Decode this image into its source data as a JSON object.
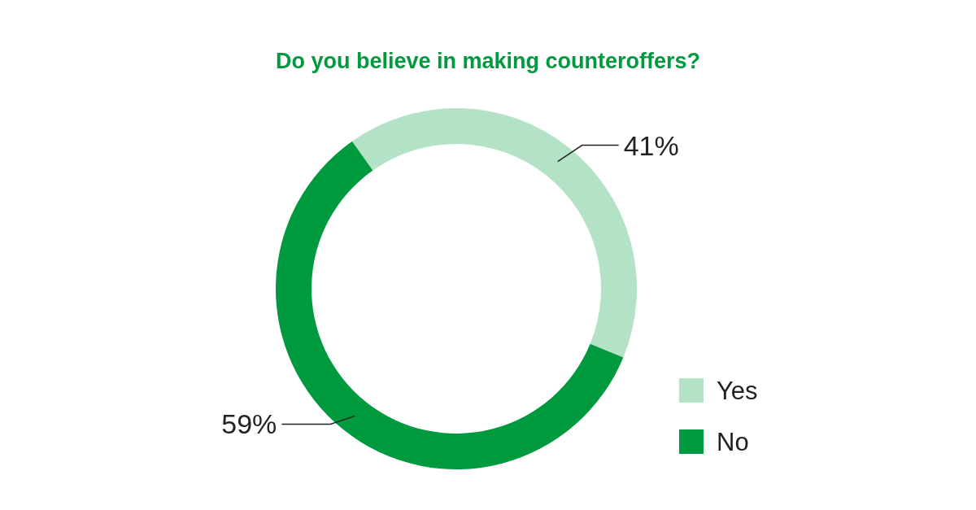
{
  "chart_data": {
    "type": "donut",
    "title": "Do you believe in making counteroffers?",
    "categories": [
      "Yes",
      "No"
    ],
    "values": [
      41,
      59
    ],
    "colors": [
      "#b3e2c7",
      "#009a3e"
    ],
    "value_labels": [
      "41%",
      "59%"
    ],
    "legend": "bottom right"
  }
}
